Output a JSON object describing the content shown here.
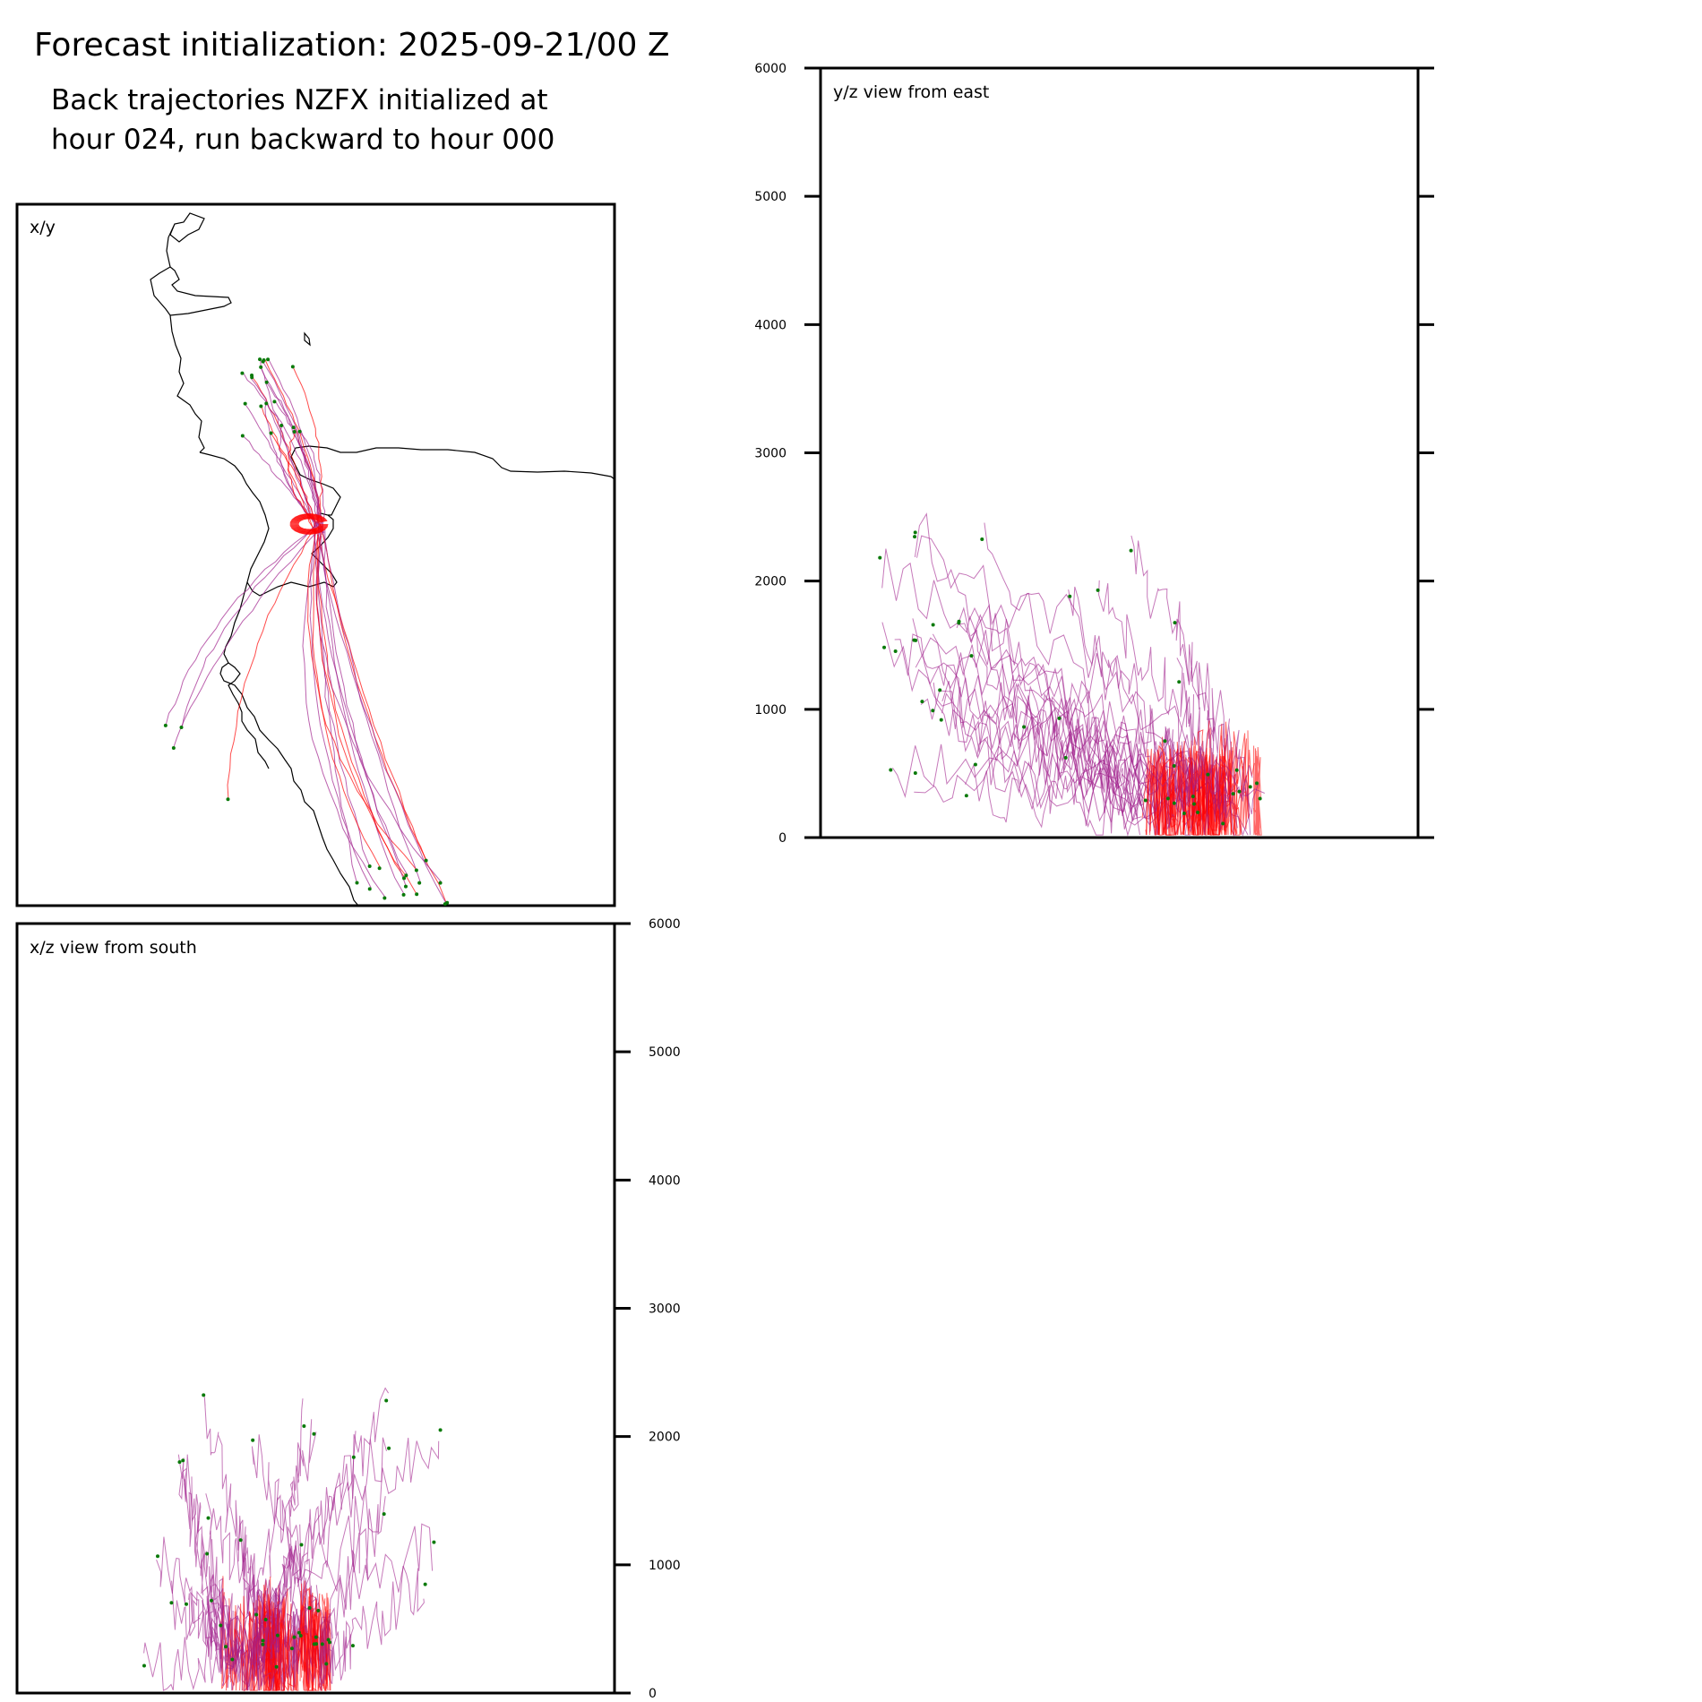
{
  "figure": {
    "title": "Forecast initialization: 2025-09-21/00 Z",
    "subtitle_line1": "Back trajectories NZFX initialized at",
    "subtitle_line2": "hour 024, run backward to hour 000"
  },
  "colors": {
    "trajectory_red": "#ff0000",
    "trajectory_purple": "#a0208c",
    "endpoint_green": "#0a7a0a",
    "coastline": "#000000",
    "axis": "#000000"
  },
  "chart_data": [
    {
      "panel": "xy",
      "type": "line",
      "title": "x/y",
      "xlabel": "",
      "ylabel": "",
      "description_kind": "plan view map with coastline",
      "series_count": 40
    },
    {
      "panel": "yz",
      "type": "line",
      "title": "y/z view from east",
      "ylabel": "",
      "ylim": [
        0,
        6000
      ],
      "yticks": [
        "0",
        "1000",
        "2000",
        "3000",
        "4000",
        "5000",
        "6000"
      ],
      "legend": "none"
    },
    {
      "panel": "xz",
      "type": "line",
      "title": "x/z view from south",
      "ylabel": "",
      "ylim": [
        0,
        6000
      ],
      "yticks": [
        "0",
        "1000",
        "2000",
        "3000",
        "4000",
        "5000",
        "6000"
      ],
      "legend": "none"
    }
  ]
}
